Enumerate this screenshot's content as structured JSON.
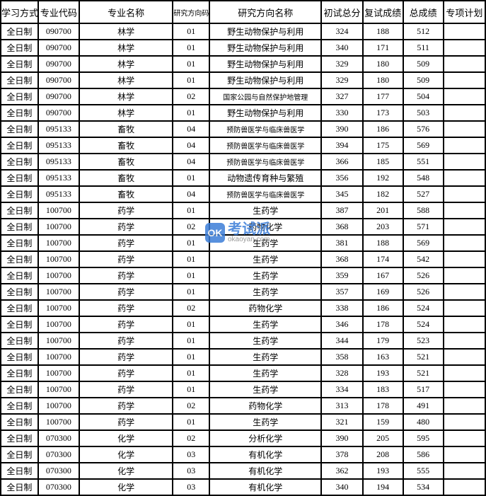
{
  "table": {
    "columns": [
      {
        "label": "学习方式",
        "class": "col-0"
      },
      {
        "label": "专业代码",
        "class": "col-1"
      },
      {
        "label": "专业名称",
        "class": "col-2"
      },
      {
        "label": "研究方向码",
        "class": "col-3 small-header"
      },
      {
        "label": "研究方向名称",
        "class": "col-4"
      },
      {
        "label": "初试总分",
        "class": "col-5"
      },
      {
        "label": "复试成绩",
        "class": "col-6"
      },
      {
        "label": "总成绩",
        "class": "col-7"
      },
      {
        "label": "专项计划",
        "class": "col-8"
      }
    ],
    "rows": [
      [
        "全日制",
        "090700",
        "林学",
        "01",
        "野生动物保护与利用",
        "324",
        "188",
        "512",
        ""
      ],
      [
        "全日制",
        "090700",
        "林学",
        "01",
        "野生动物保护与利用",
        "340",
        "171",
        "511",
        ""
      ],
      [
        "全日制",
        "090700",
        "林学",
        "01",
        "野生动物保护与利用",
        "329",
        "180",
        "509",
        ""
      ],
      [
        "全日制",
        "090700",
        "林学",
        "01",
        "野生动物保护与利用",
        "329",
        "180",
        "509",
        ""
      ],
      [
        "全日制",
        "090700",
        "林学",
        "02",
        "国家公园与自然保护地管理",
        "327",
        "177",
        "504",
        ""
      ],
      [
        "全日制",
        "090700",
        "林学",
        "01",
        "野生动物保护与利用",
        "330",
        "173",
        "503",
        ""
      ],
      [
        "全日制",
        "095133",
        "畜牧",
        "04",
        "预防兽医学与临床兽医学",
        "390",
        "186",
        "576",
        ""
      ],
      [
        "全日制",
        "095133",
        "畜牧",
        "04",
        "预防兽医学与临床兽医学",
        "394",
        "175",
        "569",
        ""
      ],
      [
        "全日制",
        "095133",
        "畜牧",
        "04",
        "预防兽医学与临床兽医学",
        "366",
        "185",
        "551",
        ""
      ],
      [
        "全日制",
        "095133",
        "畜牧",
        "01",
        "动物遗传育种与繁殖",
        "356",
        "192",
        "548",
        ""
      ],
      [
        "全日制",
        "095133",
        "畜牧",
        "04",
        "预防兽医学与临床兽医学",
        "345",
        "182",
        "527",
        ""
      ],
      [
        "全日制",
        "100700",
        "药学",
        "01",
        "生药学",
        "387",
        "201",
        "588",
        ""
      ],
      [
        "全日制",
        "100700",
        "药学",
        "02",
        "药物化学",
        "368",
        "203",
        "571",
        ""
      ],
      [
        "全日制",
        "100700",
        "药学",
        "01",
        "生药学",
        "381",
        "188",
        "569",
        ""
      ],
      [
        "全日制",
        "100700",
        "药学",
        "01",
        "生药学",
        "368",
        "174",
        "542",
        ""
      ],
      [
        "全日制",
        "100700",
        "药学",
        "01",
        "生药学",
        "359",
        "167",
        "526",
        ""
      ],
      [
        "全日制",
        "100700",
        "药学",
        "01",
        "生药学",
        "357",
        "169",
        "526",
        ""
      ],
      [
        "全日制",
        "100700",
        "药学",
        "02",
        "药物化学",
        "338",
        "186",
        "524",
        ""
      ],
      [
        "全日制",
        "100700",
        "药学",
        "01",
        "生药学",
        "346",
        "178",
        "524",
        ""
      ],
      [
        "全日制",
        "100700",
        "药学",
        "01",
        "生药学",
        "344",
        "179",
        "523",
        ""
      ],
      [
        "全日制",
        "100700",
        "药学",
        "01",
        "生药学",
        "358",
        "163",
        "521",
        ""
      ],
      [
        "全日制",
        "100700",
        "药学",
        "01",
        "生药学",
        "328",
        "193",
        "521",
        ""
      ],
      [
        "全日制",
        "100700",
        "药学",
        "01",
        "生药学",
        "334",
        "183",
        "517",
        ""
      ],
      [
        "全日制",
        "100700",
        "药学",
        "02",
        "药物化学",
        "313",
        "178",
        "491",
        ""
      ],
      [
        "全日制",
        "100700",
        "药学",
        "01",
        "生药学",
        "321",
        "159",
        "480",
        ""
      ],
      [
        "全日制",
        "070300",
        "化学",
        "02",
        "分析化学",
        "390",
        "205",
        "595",
        ""
      ],
      [
        "全日制",
        "070300",
        "化学",
        "03",
        "有机化学",
        "378",
        "208",
        "586",
        ""
      ],
      [
        "全日制",
        "070300",
        "化学",
        "03",
        "有机化学",
        "362",
        "193",
        "555",
        ""
      ],
      [
        "全日制",
        "070300",
        "化学",
        "03",
        "有机化学",
        "340",
        "194",
        "534",
        ""
      ]
    ],
    "border_color": "#000000",
    "background_color": "#ffffff",
    "header_fontsize": 13,
    "cell_fontsize": 12,
    "small_fontsize": 10
  },
  "watermark": {
    "icon_text": "OK",
    "main_text": "考试派",
    "sub_text": "okaoyan.com",
    "icon_bg": "#3b7dd8",
    "text_color": "#3b7dd8"
  }
}
